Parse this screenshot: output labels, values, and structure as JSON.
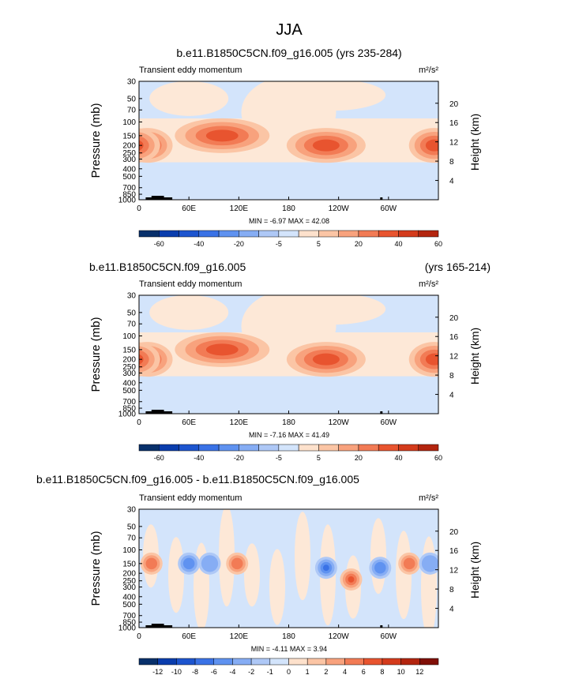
{
  "page_title": "JJA",
  "chart_data": [
    {
      "type": "heatmap",
      "title_left": "b.e11.B1850C5CN.f09_g16.005 (yrs 235-284)",
      "title_right": "",
      "subtitle": "Transient eddy momentum",
      "units": "m²/s²",
      "ylabel": "Pressure (mb)",
      "ylabel_right": "Height (km)",
      "xticks": [
        "0",
        "60E",
        "120E",
        "180",
        "120W",
        "60W"
      ],
      "yticks": [
        "30",
        "50",
        "70",
        "100",
        "150",
        "200",
        "250",
        "300",
        "400",
        "500",
        "700",
        "850",
        "1000"
      ],
      "yticks_right": [
        "20",
        "16",
        "12",
        "8",
        "4"
      ],
      "stats": "MIN = -6.97  MAX = 42.08",
      "colorbar_labels": [
        "-60",
        "-40",
        "-20",
        "-5",
        "5",
        "20",
        "40",
        "60"
      ],
      "contour_levels": [
        -60,
        -50,
        -40,
        -30,
        -20,
        -10,
        -5,
        -1,
        1,
        5,
        10,
        20,
        30,
        40,
        50,
        60
      ],
      "jets": [
        {
          "lon": 10,
          "p": 200,
          "value": 30
        },
        {
          "lon": 100,
          "p": 150,
          "value": 42
        },
        {
          "lon": 225,
          "p": 200,
          "value": 40
        },
        {
          "lon": 355,
          "p": 200,
          "value": 38
        }
      ]
    },
    {
      "type": "heatmap",
      "title_left": "b.e11.B1850C5CN.f09_g16.005",
      "title_right": "(yrs 165-214)",
      "subtitle": "Transient eddy momentum",
      "units": "m²/s²",
      "ylabel": "Pressure (mb)",
      "ylabel_right": "Height (km)",
      "xticks": [
        "0",
        "60E",
        "120E",
        "180",
        "120W",
        "60W"
      ],
      "yticks": [
        "30",
        "50",
        "70",
        "100",
        "150",
        "200",
        "250",
        "300",
        "400",
        "500",
        "700",
        "850",
        "1000"
      ],
      "yticks_right": [
        "20",
        "16",
        "12",
        "8",
        "4"
      ],
      "stats": "MIN = -7.16  MAX = 41.49",
      "colorbar_labels": [
        "-60",
        "-40",
        "-20",
        "-5",
        "5",
        "20",
        "40",
        "60"
      ],
      "contour_levels": [
        -60,
        -50,
        -40,
        -30,
        -20,
        -10,
        -5,
        -1,
        1,
        5,
        10,
        20,
        30,
        40,
        50,
        60
      ],
      "jets": [
        {
          "lon": 10,
          "p": 200,
          "value": 30
        },
        {
          "lon": 100,
          "p": 150,
          "value": 41
        },
        {
          "lon": 225,
          "p": 200,
          "value": 38
        },
        {
          "lon": 355,
          "p": 200,
          "value": 36
        }
      ]
    },
    {
      "type": "heatmap",
      "title_left": "b.e11.B1850C5CN.f09_g16.005 - b.e11.B1850C5CN.f09_g16.005",
      "title_right": "",
      "subtitle": "Transient eddy momentum",
      "units": "m²/s²",
      "ylabel": "Pressure (mb)",
      "ylabel_right": "Height (km)",
      "xticks": [
        "0",
        "60E",
        "120E",
        "180",
        "120W",
        "60W"
      ],
      "yticks": [
        "30",
        "50",
        "70",
        "100",
        "150",
        "200",
        "250",
        "300",
        "400",
        "500",
        "700",
        "850",
        "1000"
      ],
      "yticks_right": [
        "20",
        "16",
        "12",
        "8",
        "4"
      ],
      "stats": "MIN = -4.11  MAX = 3.94",
      "colorbar_labels": [
        "-12",
        "-10",
        "-8",
        "-6",
        "-4",
        "-2",
        "-1",
        "0",
        "1",
        "2",
        "4",
        "6",
        "8",
        "10",
        "12"
      ],
      "contour_levels": [
        -14,
        -12,
        -10,
        -8,
        -6,
        -4,
        -2,
        -1,
        0,
        1,
        2,
        4,
        6,
        8,
        10,
        12,
        14
      ],
      "anomalies": [
        {
          "lon": 15,
          "p": 150,
          "value": 3
        },
        {
          "lon": 60,
          "p": 150,
          "value": -3
        },
        {
          "lon": 85,
          "p": 150,
          "value": -2
        },
        {
          "lon": 118,
          "p": 150,
          "value": 3
        },
        {
          "lon": 225,
          "p": 170,
          "value": -4
        },
        {
          "lon": 255,
          "p": 240,
          "value": 4
        },
        {
          "lon": 290,
          "p": 170,
          "value": -3
        },
        {
          "lon": 325,
          "p": 150,
          "value": 3
        },
        {
          "lon": 350,
          "p": 150,
          "value": -2
        }
      ]
    }
  ],
  "colors": {
    "diverging": [
      "#08306b",
      "#0a3dad",
      "#1d55cf",
      "#3a72e6",
      "#5f92f0",
      "#86adf4",
      "#aec8f6",
      "#d3e4fb",
      "#fde1cc",
      "#fbc5a5",
      "#f8a27d",
      "#f27b55",
      "#e8542f",
      "#d43b1c",
      "#b3250f",
      "#800f07"
    ],
    "neutral_negative": "#d3e4fb",
    "neutral_positive": "#fde8d7",
    "topography": "#000000"
  }
}
